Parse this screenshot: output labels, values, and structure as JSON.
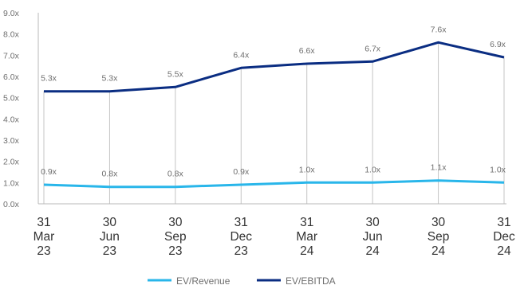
{
  "chart_data": {
    "type": "line",
    "x": [
      [
        "31",
        "Mar",
        "23"
      ],
      [
        "30",
        "Jun",
        "23"
      ],
      [
        "30",
        "Sep",
        "23"
      ],
      [
        "31",
        "Dec",
        "23"
      ],
      [
        "31",
        "Mar",
        "24"
      ],
      [
        "30",
        "Jun",
        "24"
      ],
      [
        "30",
        "Sep",
        "24"
      ],
      [
        "31",
        "Dec",
        "24"
      ]
    ],
    "series": [
      {
        "name": "EV/Revenue",
        "color": "#29b6ea",
        "values": [
          0.9,
          0.8,
          0.8,
          0.9,
          1.0,
          1.0,
          1.1,
          1.0
        ],
        "labels": [
          "0.9x",
          "0.8x",
          "0.8x",
          "0.9x",
          "1.0x",
          "1.0x",
          "1.1x",
          "1.0x"
        ]
      },
      {
        "name": "EV/EBITDA",
        "color": "#0a2d82",
        "values": [
          5.3,
          5.3,
          5.5,
          6.4,
          6.6,
          6.7,
          7.6,
          6.9
        ],
        "labels": [
          "5.3x",
          "5.3x",
          "5.5x",
          "6.4x",
          "6.6x",
          "6.7x",
          "7.6x",
          "6.9x"
        ]
      }
    ],
    "ylim": [
      0,
      9
    ],
    "yticks": [
      "0.0x",
      "1.0x",
      "2.0x",
      "3.0x",
      "4.0x",
      "5.0x",
      "6.0x",
      "7.0x",
      "8.0x",
      "9.0x"
    ],
    "legend_position": "bottom",
    "grid": false,
    "drop_lines": true
  }
}
